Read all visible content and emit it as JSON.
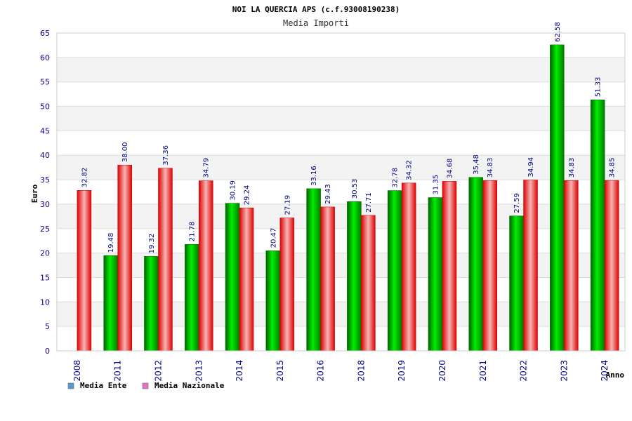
{
  "chart_data": {
    "type": "bar",
    "title": "NOI LA QUERCIA APS (c.f.93008190238)",
    "subtitle": "Media Importi",
    "ylabel": "Euro",
    "xlabel": "Anno",
    "ylim": [
      0,
      65
    ],
    "yticks": [
      0,
      5,
      10,
      15,
      20,
      25,
      30,
      35,
      40,
      45,
      50,
      55,
      60,
      65
    ],
    "grid": true,
    "legend_placement": "bottom-left",
    "categories": [
      "2008",
      "2011",
      "2012",
      "2013",
      "2014",
      "2015",
      "2016",
      "2018",
      "2019",
      "2020",
      "2021",
      "2022",
      "2023",
      "2024"
    ],
    "series": [
      {
        "name": "Media Ente",
        "legend_color": "#5b9bd5",
        "bar_color": "#00c000",
        "values": [
          null,
          19.48,
          19.32,
          21.78,
          30.19,
          20.47,
          33.16,
          30.53,
          32.78,
          31.35,
          35.48,
          27.59,
          62.58,
          51.33
        ],
        "labels": [
          "",
          "19.48",
          "19.32",
          "21.78",
          "30.19",
          "20.47",
          "33.16",
          "30.53",
          "32.78",
          "31.35",
          "35.48",
          "27.59",
          "62.58",
          "51.33"
        ]
      },
      {
        "name": "Media Nazionale",
        "legend_color": "#e377c2",
        "bar_color": "#ee1111",
        "values": [
          32.82,
          38.0,
          37.36,
          34.79,
          29.24,
          27.19,
          29.43,
          27.71,
          34.32,
          34.68,
          34.83,
          34.94,
          34.83,
          34.85
        ],
        "labels": [
          "32.82",
          "38.00",
          "37.36",
          "34.79",
          "29.24",
          "27.19",
          "29.43",
          "27.71",
          "34.32",
          "34.68",
          "34.83",
          "34.94",
          "34.83",
          "34.85"
        ]
      }
    ]
  }
}
